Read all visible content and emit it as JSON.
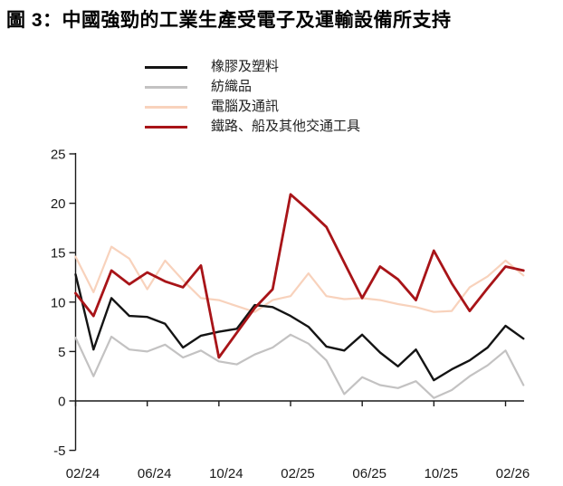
{
  "title": "圖 3：中國強勁的工業生產受電子及運輸設備所支持",
  "chart_data": {
    "type": "line",
    "title": "圖 3：中國強勁的工業生產受電子及運輸設備所支持",
    "x_tick_labels": [
      "02/24",
      "06/24",
      "10/24",
      "02/25",
      "06/25",
      "10/25",
      "02/26"
    ],
    "x_note": "monthly data points, 26 points from 02/24, axis ticks every 4 months",
    "y_ticks": [
      25,
      20,
      15,
      10,
      5,
      0,
      -5
    ],
    "ylim": [
      -5,
      25
    ],
    "grid": false,
    "legend_position": "top-left",
    "series": [
      {
        "name": "橡膠及塑料",
        "slug": "rubber-plastics",
        "color": "#141414",
        "width": 2.4,
        "values": [
          12.8,
          5.2,
          10.4,
          8.6,
          8.5,
          7.8,
          5.4,
          6.6,
          7.0,
          7.3,
          9.7,
          9.5,
          8.6,
          7.5,
          5.5,
          5.1,
          6.7,
          4.9,
          3.5,
          5.2,
          2.1,
          3.2,
          4.1,
          5.4,
          7.6,
          6.3
        ]
      },
      {
        "name": "紡織品",
        "slug": "textiles",
        "color": "#c3c2c2",
        "width": 2.2,
        "values": [
          6.4,
          2.5,
          6.5,
          5.2,
          5.0,
          5.7,
          4.4,
          5.1,
          4.0,
          3.7,
          4.7,
          5.4,
          6.7,
          5.8,
          4.1,
          0.7,
          2.4,
          1.6,
          1.3,
          2.0,
          0.3,
          1.1,
          2.5,
          3.6,
          5.1,
          1.6
        ]
      },
      {
        "name": "電腦及通訊",
        "slug": "computers-communications",
        "color": "#f8d2bc",
        "width": 2.2,
        "values": [
          14.6,
          11.0,
          15.6,
          14.4,
          11.3,
          14.2,
          12.2,
          10.4,
          10.2,
          9.6,
          9.0,
          10.2,
          10.6,
          12.9,
          10.6,
          10.3,
          10.4,
          10.2,
          9.8,
          9.5,
          9.0,
          9.1,
          11.5,
          12.6,
          14.2,
          12.7
        ]
      },
      {
        "name": "鐵路、船及其他交通工具",
        "slug": "rail-ship-transport",
        "color": "#a81418",
        "width": 2.8,
        "values": [
          10.9,
          8.6,
          13.2,
          11.8,
          13.0,
          12.1,
          11.5,
          13.7,
          4.4,
          6.9,
          9.4,
          11.3,
          20.9,
          19.3,
          17.6,
          14.0,
          10.4,
          13.6,
          12.3,
          10.2,
          15.2,
          11.9,
          9.1,
          11.4,
          13.6,
          13.2
        ]
      }
    ]
  }
}
